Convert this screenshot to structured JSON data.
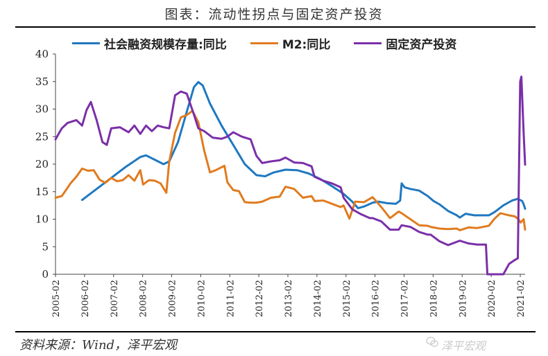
{
  "title": "图表：流动性拐点与固定资产投资",
  "source": "资料来源：Wind，泽平宏观",
  "watermark": "泽平宏观",
  "colors": {
    "tsf": "#1f78c0",
    "m2": "#e07b1f",
    "fai": "#7a2fa8"
  },
  "chart_data": {
    "type": "line",
    "title": "图表：流动性拐点与固定资产投资",
    "ylim": [
      0,
      40
    ],
    "yticks": [
      0,
      5,
      10,
      15,
      20,
      25,
      30,
      35,
      40
    ],
    "xlim": [
      2005.083,
      2021.25
    ],
    "xtick_labels": [
      "2005-02",
      "2006-02",
      "2007-02",
      "2008-02",
      "2009-02",
      "2010-02",
      "2011-02",
      "2012-02",
      "2013-02",
      "2014-02",
      "2015-02",
      "2016-02",
      "2017-02",
      "2018-02",
      "2019-02",
      "2020-02",
      "2021-02"
    ],
    "grid": false,
    "legend_position": "top",
    "series": [
      {
        "name": "社会融资规模存量:同比",
        "color": "#1f78c0",
        "points": [
          [
            2006.0,
            13.5
          ],
          [
            2006.5,
            15.5
          ],
          [
            2007.0,
            17.5
          ],
          [
            2007.5,
            19.5
          ],
          [
            2008.0,
            21.3
          ],
          [
            2008.2,
            21.6
          ],
          [
            2008.5,
            20.8
          ],
          [
            2008.8,
            20.0
          ],
          [
            2009.0,
            20.5
          ],
          [
            2009.3,
            24.0
          ],
          [
            2009.6,
            29.5
          ],
          [
            2009.85,
            34.0
          ],
          [
            2010.0,
            34.9
          ],
          [
            2010.15,
            34.3
          ],
          [
            2010.4,
            31.0
          ],
          [
            2010.8,
            27.0
          ],
          [
            2011.2,
            23.5
          ],
          [
            2011.6,
            20.0
          ],
          [
            2012.0,
            18.0
          ],
          [
            2012.3,
            17.8
          ],
          [
            2012.6,
            18.5
          ],
          [
            2013.0,
            19.0
          ],
          [
            2013.4,
            18.9
          ],
          [
            2013.8,
            18.3
          ],
          [
            2014.2,
            17.3
          ],
          [
            2014.6,
            16.0
          ],
          [
            2015.0,
            14.6
          ],
          [
            2015.3,
            13.2
          ],
          [
            2015.5,
            12.0
          ],
          [
            2015.7,
            12.3
          ],
          [
            2016.0,
            13.0
          ],
          [
            2016.2,
            13.2
          ],
          [
            2016.5,
            12.9
          ],
          [
            2016.8,
            12.8
          ],
          [
            2016.95,
            13.4
          ],
          [
            2017.0,
            16.5
          ],
          [
            2017.1,
            15.8
          ],
          [
            2017.3,
            15.5
          ],
          [
            2017.6,
            15.2
          ],
          [
            2017.9,
            14.2
          ],
          [
            2018.1,
            13.3
          ],
          [
            2018.3,
            12.7
          ],
          [
            2018.6,
            11.5
          ],
          [
            2018.9,
            10.7
          ],
          [
            2019.0,
            10.3
          ],
          [
            2019.2,
            11.0
          ],
          [
            2019.5,
            10.7
          ],
          [
            2019.8,
            10.7
          ],
          [
            2020.0,
            10.7
          ],
          [
            2020.2,
            11.3
          ],
          [
            2020.5,
            12.5
          ],
          [
            2020.8,
            13.4
          ],
          [
            2021.0,
            13.7
          ],
          [
            2021.15,
            13.3
          ],
          [
            2021.2,
            12.7
          ],
          [
            2021.25,
            11.9
          ]
        ]
      },
      {
        "name": "M2:同比",
        "color": "#e07b1f",
        "points": [
          [
            2005.083,
            13.9
          ],
          [
            2005.3,
            14.2
          ],
          [
            2005.6,
            16.5
          ],
          [
            2005.8,
            17.7
          ],
          [
            2006.0,
            19.2
          ],
          [
            2006.2,
            18.8
          ],
          [
            2006.4,
            18.9
          ],
          [
            2006.6,
            17.2
          ],
          [
            2006.8,
            16.6
          ],
          [
            2007.0,
            17.5
          ],
          [
            2007.2,
            16.9
          ],
          [
            2007.4,
            17.1
          ],
          [
            2007.6,
            18.0
          ],
          [
            2007.8,
            17.0
          ],
          [
            2008.0,
            18.9
          ],
          [
            2008.1,
            16.3
          ],
          [
            2008.3,
            17.1
          ],
          [
            2008.5,
            17.0
          ],
          [
            2008.7,
            16.5
          ],
          [
            2008.9,
            14.8
          ],
          [
            2009.0,
            20.5
          ],
          [
            2009.2,
            25.7
          ],
          [
            2009.4,
            28.5
          ],
          [
            2009.6,
            28.9
          ],
          [
            2009.8,
            29.7
          ],
          [
            2010.0,
            27.6
          ],
          [
            2010.2,
            22.5
          ],
          [
            2010.4,
            18.5
          ],
          [
            2010.6,
            18.9
          ],
          [
            2010.9,
            19.7
          ],
          [
            2011.0,
            16.7
          ],
          [
            2011.2,
            15.3
          ],
          [
            2011.4,
            15.1
          ],
          [
            2011.6,
            13.1
          ],
          [
            2011.8,
            13.0
          ],
          [
            2012.0,
            13.0
          ],
          [
            2012.2,
            13.2
          ],
          [
            2012.5,
            13.9
          ],
          [
            2012.8,
            14.1
          ],
          [
            2013.0,
            15.9
          ],
          [
            2013.3,
            15.5
          ],
          [
            2013.6,
            13.9
          ],
          [
            2013.9,
            14.2
          ],
          [
            2014.0,
            13.3
          ],
          [
            2014.3,
            13.4
          ],
          [
            2014.6,
            12.8
          ],
          [
            2014.9,
            12.2
          ],
          [
            2015.0,
            12.5
          ],
          [
            2015.2,
            10.1
          ],
          [
            2015.4,
            13.2
          ],
          [
            2015.7,
            13.1
          ],
          [
            2016.0,
            14.0
          ],
          [
            2016.3,
            12.2
          ],
          [
            2016.6,
            10.2
          ],
          [
            2016.9,
            11.4
          ],
          [
            2017.0,
            11.1
          ],
          [
            2017.3,
            10.0
          ],
          [
            2017.6,
            8.9
          ],
          [
            2017.9,
            8.8
          ],
          [
            2018.0,
            8.6
          ],
          [
            2018.3,
            8.3
          ],
          [
            2018.6,
            8.2
          ],
          [
            2018.9,
            8.3
          ],
          [
            2019.0,
            8.0
          ],
          [
            2019.3,
            8.5
          ],
          [
            2019.6,
            8.4
          ],
          [
            2019.9,
            8.7
          ],
          [
            2020.0,
            8.8
          ],
          [
            2020.2,
            10.1
          ],
          [
            2020.4,
            11.1
          ],
          [
            2020.7,
            10.7
          ],
          [
            2020.9,
            10.5
          ],
          [
            2021.0,
            10.1
          ],
          [
            2021.1,
            9.4
          ],
          [
            2021.2,
            10.0
          ],
          [
            2021.25,
            8.1
          ]
        ]
      },
      {
        "name": "固定资产投资",
        "color": "#7a2fa8",
        "points": [
          [
            2005.083,
            24.5
          ],
          [
            2005.3,
            26.5
          ],
          [
            2005.5,
            27.5
          ],
          [
            2005.8,
            28.0
          ],
          [
            2006.0,
            27.0
          ],
          [
            2006.15,
            29.8
          ],
          [
            2006.3,
            31.3
          ],
          [
            2006.5,
            28.0
          ],
          [
            2006.7,
            24.0
          ],
          [
            2006.85,
            23.5
          ],
          [
            2007.0,
            26.5
          ],
          [
            2007.3,
            26.7
          ],
          [
            2007.6,
            25.8
          ],
          [
            2007.8,
            27.0
          ],
          [
            2008.0,
            25.5
          ],
          [
            2008.2,
            27.0
          ],
          [
            2008.4,
            26.0
          ],
          [
            2008.6,
            27.0
          ],
          [
            2008.8,
            26.7
          ],
          [
            2009.0,
            26.5
          ],
          [
            2009.2,
            32.5
          ],
          [
            2009.4,
            33.2
          ],
          [
            2009.6,
            32.8
          ],
          [
            2009.85,
            29.0
          ],
          [
            2010.0,
            26.5
          ],
          [
            2010.2,
            26.0
          ],
          [
            2010.5,
            24.8
          ],
          [
            2010.8,
            24.6
          ],
          [
            2011.0,
            25.0
          ],
          [
            2011.2,
            25.8
          ],
          [
            2011.5,
            25.0
          ],
          [
            2011.8,
            24.5
          ],
          [
            2012.0,
            21.5
          ],
          [
            2012.2,
            20.2
          ],
          [
            2012.5,
            20.5
          ],
          [
            2012.8,
            20.7
          ],
          [
            2013.0,
            21.2
          ],
          [
            2013.3,
            20.3
          ],
          [
            2013.6,
            20.2
          ],
          [
            2013.9,
            19.6
          ],
          [
            2014.0,
            17.7
          ],
          [
            2014.3,
            17.0
          ],
          [
            2014.6,
            16.5
          ],
          [
            2014.9,
            15.8
          ],
          [
            2015.0,
            13.9
          ],
          [
            2015.3,
            11.8
          ],
          [
            2015.6,
            10.9
          ],
          [
            2015.9,
            10.2
          ],
          [
            2016.0,
            10.2
          ],
          [
            2016.3,
            9.6
          ],
          [
            2016.6,
            8.1
          ],
          [
            2016.9,
            8.1
          ],
          [
            2017.0,
            8.9
          ],
          [
            2017.3,
            8.6
          ],
          [
            2017.6,
            7.7
          ],
          [
            2017.9,
            7.2
          ],
          [
            2018.0,
            7.2
          ],
          [
            2018.3,
            6.0
          ],
          [
            2018.6,
            5.3
          ],
          [
            2018.9,
            5.9
          ],
          [
            2019.0,
            6.1
          ],
          [
            2019.3,
            5.6
          ],
          [
            2019.6,
            5.4
          ],
          [
            2019.9,
            5.4
          ],
          [
            2019.95,
            0
          ],
          [
            2020.5,
            0
          ],
          [
            2020.7,
            1.9
          ],
          [
            2020.9,
            2.6
          ],
          [
            2021.0,
            2.9
          ],
          [
            2021.08,
            35.0
          ],
          [
            2021.12,
            35.9
          ],
          [
            2021.2,
            25.6
          ],
          [
            2021.25,
            19.9
          ]
        ]
      }
    ]
  }
}
